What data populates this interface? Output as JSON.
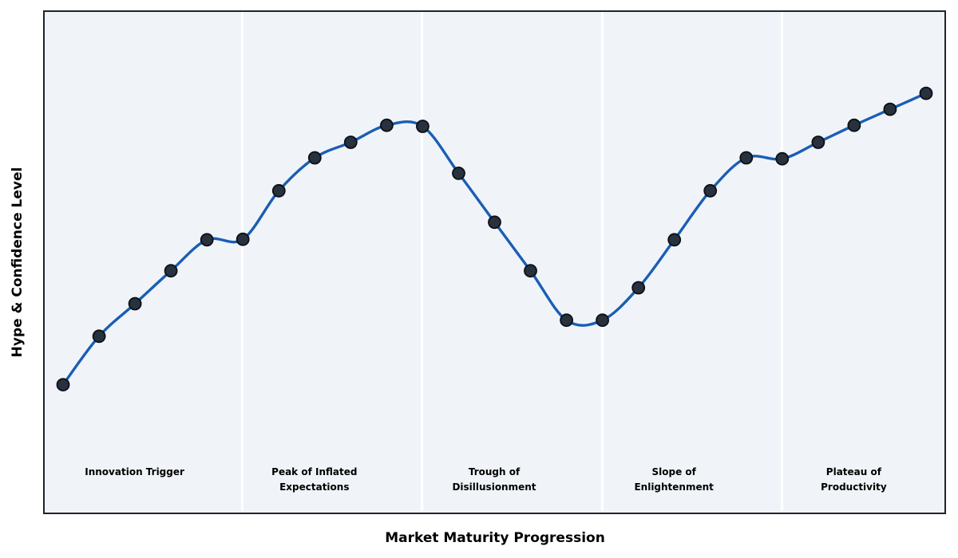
{
  "chart_data": {
    "type": "line",
    "title": "",
    "xlabel": "Market Maturity Progression",
    "ylabel": "Hype & Confidence Level",
    "x": [
      0,
      1,
      2,
      3,
      4,
      5,
      6,
      7,
      8,
      9,
      10,
      11,
      12,
      13,
      14,
      15,
      16,
      17,
      18,
      19,
      20,
      21,
      22,
      23,
      24
    ],
    "series": [
      {
        "name": "Hype & Confidence",
        "values": [
          25.5,
          35.2,
          41.7,
          48.3,
          54.5,
          54.6,
          64.3,
          70.9,
          74.0,
          77.4,
          77.2,
          67.8,
          58.0,
          48.3,
          38.4,
          38.4,
          44.9,
          54.5,
          64.3,
          70.9,
          70.7,
          74.0,
          77.4,
          80.6,
          83.8
        ]
      }
    ],
    "xlim": [
      -0.5,
      24.5
    ],
    "ylim": [
      0,
      100
    ],
    "grid": false,
    "ticks_visible": false,
    "legend": "none",
    "line_style": "smooth-spline",
    "marker_shape": "circle",
    "phases": [
      {
        "label": "Innovation Trigger",
        "center_x": 2
      },
      {
        "label": "Peak of Inflated\nExpectations",
        "center_x": 7
      },
      {
        "label": "Trough of\nDisillusionment",
        "center_x": 12
      },
      {
        "label": "Slope of\nEnlightenment",
        "center_x": 17
      },
      {
        "label": "Plateau of\nProductivity",
        "center_x": 22
      }
    ],
    "phase_boundaries_x": [
      5,
      10,
      15,
      20
    ],
    "colors": {
      "line": "#1a5eb4",
      "marker_fill": "#28313e",
      "marker_edge": "#0c1016",
      "plot_bg": "#f0f4f8",
      "separator": "#ffffff",
      "border": "#1e242c",
      "text": "#000000",
      "page_bg": "#ffffff"
    }
  }
}
